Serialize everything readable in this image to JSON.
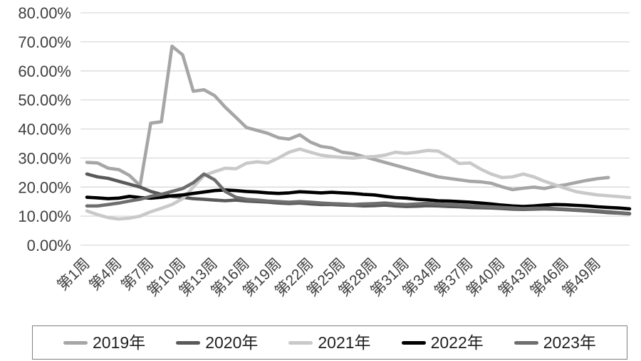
{
  "chart_data": {
    "type": "line",
    "title": "",
    "grid": true,
    "legend_position": "bottom",
    "grid_color": "#d9d9d9",
    "text_color": "#404040",
    "y_axis": {
      "min": 0,
      "max": 80,
      "step": 10,
      "unit": "%",
      "tick_labels": [
        "80.00%",
        "70.00%",
        "60.00%",
        "50.00%",
        "40.00%",
        "30.00%",
        "20.00%",
        "10.00%",
        "0.00%"
      ]
    },
    "x_axis": {
      "unit": "week",
      "ticks": [
        {
          "week": 1,
          "label": "第1周"
        },
        {
          "week": 4,
          "label": "第4周"
        },
        {
          "week": 7,
          "label": "第7周"
        },
        {
          "week": 10,
          "label": "第10周"
        },
        {
          "week": 13,
          "label": "第13周"
        },
        {
          "week": 16,
          "label": "第16周"
        },
        {
          "week": 19,
          "label": "第19周"
        },
        {
          "week": 22,
          "label": "第22周"
        },
        {
          "week": 25,
          "label": "第25周"
        },
        {
          "week": 28,
          "label": "第28周"
        },
        {
          "week": 31,
          "label": "第31周"
        },
        {
          "week": 34,
          "label": "第34周"
        },
        {
          "week": 37,
          "label": "第37周"
        },
        {
          "week": 40,
          "label": "第40周"
        },
        {
          "week": 43,
          "label": "第43周"
        },
        {
          "week": 46,
          "label": "第46周"
        },
        {
          "week": 49,
          "label": "第49周"
        }
      ]
    },
    "series": [
      {
        "name": "2019年",
        "key": "2019",
        "color": "#a6a6a6",
        "start_week": 1,
        "values": [
          28.5,
          28.3,
          26.5,
          26.0,
          24.0,
          20.5,
          42.0,
          42.5,
          68.5,
          65.5,
          53.0,
          53.5,
          51.5,
          47.5,
          44.0,
          40.5,
          39.5,
          38.5,
          37.0,
          36.5,
          38.0,
          35.5,
          34.0,
          33.5,
          32.0,
          31.5,
          30.5,
          29.5,
          28.5,
          27.5,
          26.5,
          25.5,
          24.5,
          23.5,
          23.0,
          22.5,
          22.0,
          21.8,
          21.3,
          20.1,
          19.1,
          19.6,
          20.0,
          19.5,
          20.3,
          20.8,
          21.6,
          22.3,
          22.9,
          23.3
        ]
      },
      {
        "name": "2020年",
        "key": "2020",
        "color": "#595959",
        "start_week": 1,
        "values": [
          24.5,
          23.5,
          23.0,
          22.0,
          21.0,
          20.0,
          18.5,
          17.5,
          16.8,
          16.5,
          16.0,
          15.8,
          15.5,
          15.3,
          15.5,
          15.2,
          15.0,
          14.8,
          14.5,
          14.3,
          14.5,
          14.2,
          14.0,
          14.0,
          13.8,
          13.7,
          13.5,
          13.6,
          13.8,
          13.5,
          13.3,
          13.4,
          13.6,
          13.5,
          13.3,
          13.2,
          13.0,
          12.9,
          12.8,
          12.6,
          12.4,
          12.3,
          12.4,
          12.5,
          12.4,
          12.2,
          12.0,
          11.8,
          11.5,
          11.2,
          11.0,
          10.8
        ]
      },
      {
        "name": "2021年",
        "key": "2021",
        "color": "#c9c9c9",
        "start_week": 1,
        "values": [
          11.8,
          10.5,
          9.5,
          9.0,
          9.3,
          10.0,
          11.5,
          12.7,
          14.0,
          16.0,
          20.0,
          24.0,
          25.3,
          26.5,
          26.3,
          28.2,
          28.7,
          28.3,
          30.0,
          32.0,
          33.1,
          32.0,
          31.0,
          30.5,
          30.2,
          30.0,
          30.3,
          30.5,
          31.0,
          32.0,
          31.6,
          32.0,
          32.6,
          32.4,
          30.4,
          28.1,
          28.3,
          26.2,
          24.5,
          23.3,
          23.5,
          24.5,
          23.5,
          22.0,
          20.8,
          19.5,
          18.4,
          17.8,
          17.3,
          17.0,
          16.7,
          16.4
        ]
      },
      {
        "name": "2022年",
        "key": "2022",
        "color": "#000000",
        "start_week": 1,
        "values": [
          16.5,
          16.3,
          16.0,
          16.2,
          16.8,
          16.4,
          16.2,
          16.5,
          17.0,
          17.3,
          17.8,
          18.3,
          18.8,
          19.0,
          18.8,
          18.5,
          18.3,
          18.0,
          17.8,
          18.0,
          18.4,
          18.2,
          18.0,
          18.2,
          18.0,
          17.8,
          17.5,
          17.3,
          16.8,
          16.4,
          16.2,
          15.8,
          15.6,
          15.3,
          15.2,
          15.0,
          14.8,
          14.5,
          14.2,
          13.8,
          13.5,
          13.3,
          13.5,
          13.8,
          14.0,
          13.9,
          13.7,
          13.5,
          13.2,
          13.0,
          12.8,
          12.5
        ]
      },
      {
        "name": "2023年",
        "key": "2023",
        "color": "#6e6e6e",
        "start_week": 1,
        "values": [
          13.5,
          13.5,
          14.0,
          14.5,
          15.2,
          15.8,
          16.8,
          17.5,
          18.5,
          19.5,
          21.5,
          24.5,
          22.5,
          18.5,
          16.5,
          15.8,
          15.5,
          15.2,
          15.0,
          14.8,
          15.0,
          14.8,
          14.5,
          14.3,
          14.2,
          14.0,
          14.2,
          14.3,
          14.5,
          14.2,
          14.0,
          14.2,
          14.4,
          14.2,
          14.0,
          13.8,
          13.6,
          13.4,
          13.2,
          13.0,
          12.8,
          12.6,
          12.7,
          12.8,
          12.6,
          12.4,
          12.2,
          12.0,
          11.8,
          11.5,
          11.2,
          10.9
        ]
      }
    ]
  }
}
